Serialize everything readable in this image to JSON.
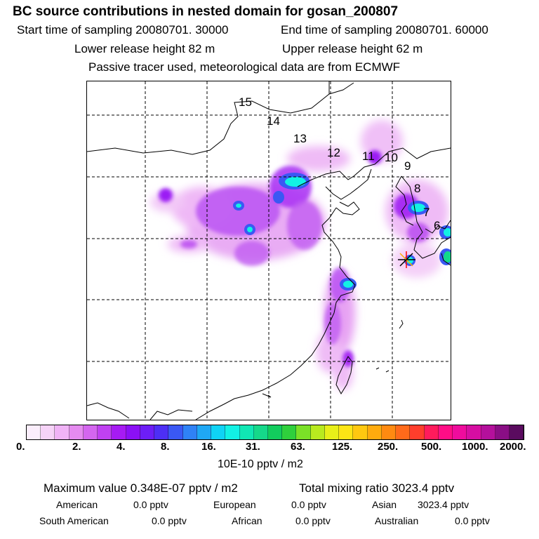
{
  "header": {
    "title": "BC  source contributions in nested domain for gosan_200807",
    "start_time": "Start time of sampling 20080701. 30000",
    "end_time": "End time of sampling 20080701. 60000",
    "lower_height": "Lower release height   82 m",
    "upper_height": "Upper release height   62 m",
    "tracer_note": "Passive tracer used, meteorological data are from ECMWF"
  },
  "map": {
    "day_markers": [
      "15",
      "14",
      "13",
      "12",
      "11",
      "10",
      "9",
      "8",
      "7",
      "6"
    ],
    "receptor": "gosan station"
  },
  "colorbar": {
    "colors": [
      "#fbeefc",
      "#f6d3f8",
      "#f0b3f6",
      "#e58bf0",
      "#d466ef",
      "#c041f1",
      "#a61bf3",
      "#8b10f6",
      "#6d1ef6",
      "#4d2ff5",
      "#3a58f4",
      "#2f82f6",
      "#1fa8f5",
      "#0fd3f5",
      "#12f1e4",
      "#10e7b4",
      "#15d88a",
      "#12cc5d",
      "#2fd03c",
      "#7be027",
      "#b9ea1f",
      "#e8ef19",
      "#fde515",
      "#ffc810",
      "#ffab0e",
      "#ff8a11",
      "#ff6a1a",
      "#ff3e2c",
      "#ff1b5c",
      "#ff0d86",
      "#ef0c9d",
      "#d60ea2",
      "#b4109c",
      "#8a0e85",
      "#5a0b5f"
    ],
    "tick_labels": [
      "0.",
      "2.",
      "4.",
      "8.",
      "16.",
      "31.",
      "63.",
      "125.",
      "250.",
      "500.",
      "1000.",
      "2000."
    ],
    "units": "10E-10 pptv / m2"
  },
  "summary": {
    "max_value": "Maximum value  0.348E-07 pptv / m2",
    "total_mixing": "Total mixing ratio     3023.4 pptv"
  },
  "regions": [
    {
      "name": "American",
      "value": "0.0 pptv"
    },
    {
      "name": "European",
      "value": "0.0 pptv"
    },
    {
      "name": "Asian",
      "value": "3023.4 pptv"
    },
    {
      "name": "South American",
      "value": "0.0 pptv"
    },
    {
      "name": "African",
      "value": "0.0 pptv"
    },
    {
      "name": "Australian",
      "value": "0.0 pptv"
    }
  ]
}
